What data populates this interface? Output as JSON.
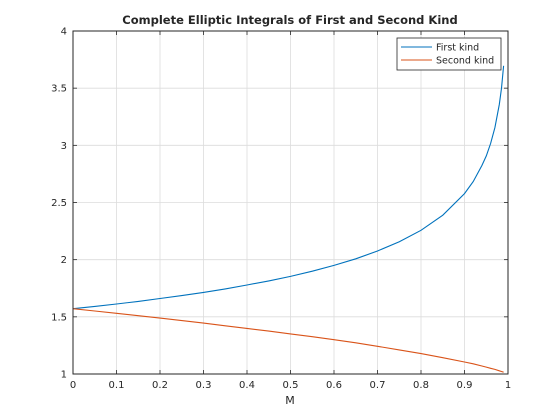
{
  "chart_data": {
    "type": "line",
    "title": "Complete Elliptic Integrals of First and Second Kind",
    "xlabel": "M",
    "ylabel": "",
    "xlim": [
      0,
      1
    ],
    "ylim": [
      1,
      4
    ],
    "xticks": [
      "0",
      "0.1",
      "0.2",
      "0.3",
      "0.4",
      "0.5",
      "0.6",
      "0.7",
      "0.8",
      "0.9",
      "1"
    ],
    "yticks": [
      "1",
      "1.5",
      "2",
      "2.5",
      "3",
      "3.5",
      "4"
    ],
    "grid": true,
    "legend_position": "top-right",
    "x": [
      0,
      0.05,
      0.1,
      0.15,
      0.2,
      0.25,
      0.3,
      0.35,
      0.4,
      0.45,
      0.5,
      0.55,
      0.6,
      0.65,
      0.7,
      0.75,
      0.8,
      0.85,
      0.9,
      0.92,
      0.94,
      0.95,
      0.96,
      0.97,
      0.98,
      0.985,
      0.99
    ],
    "series": [
      {
        "name": "First kind",
        "color": "#0072BD",
        "values": [
          1.571,
          1.591,
          1.612,
          1.635,
          1.66,
          1.686,
          1.714,
          1.744,
          1.778,
          1.814,
          1.854,
          1.899,
          1.95,
          2.008,
          2.076,
          2.157,
          2.257,
          2.389,
          2.578,
          2.683,
          2.824,
          2.908,
          3.016,
          3.155,
          3.357,
          3.5,
          3.696
        ]
      },
      {
        "name": "Second kind",
        "color": "#D95319",
        "values": [
          1.571,
          1.551,
          1.531,
          1.51,
          1.489,
          1.467,
          1.445,
          1.422,
          1.399,
          1.375,
          1.351,
          1.326,
          1.3,
          1.273,
          1.242,
          1.211,
          1.178,
          1.143,
          1.105,
          1.089,
          1.07,
          1.06,
          1.05,
          1.04,
          1.028,
          1.022,
          1.016
        ]
      }
    ]
  }
}
